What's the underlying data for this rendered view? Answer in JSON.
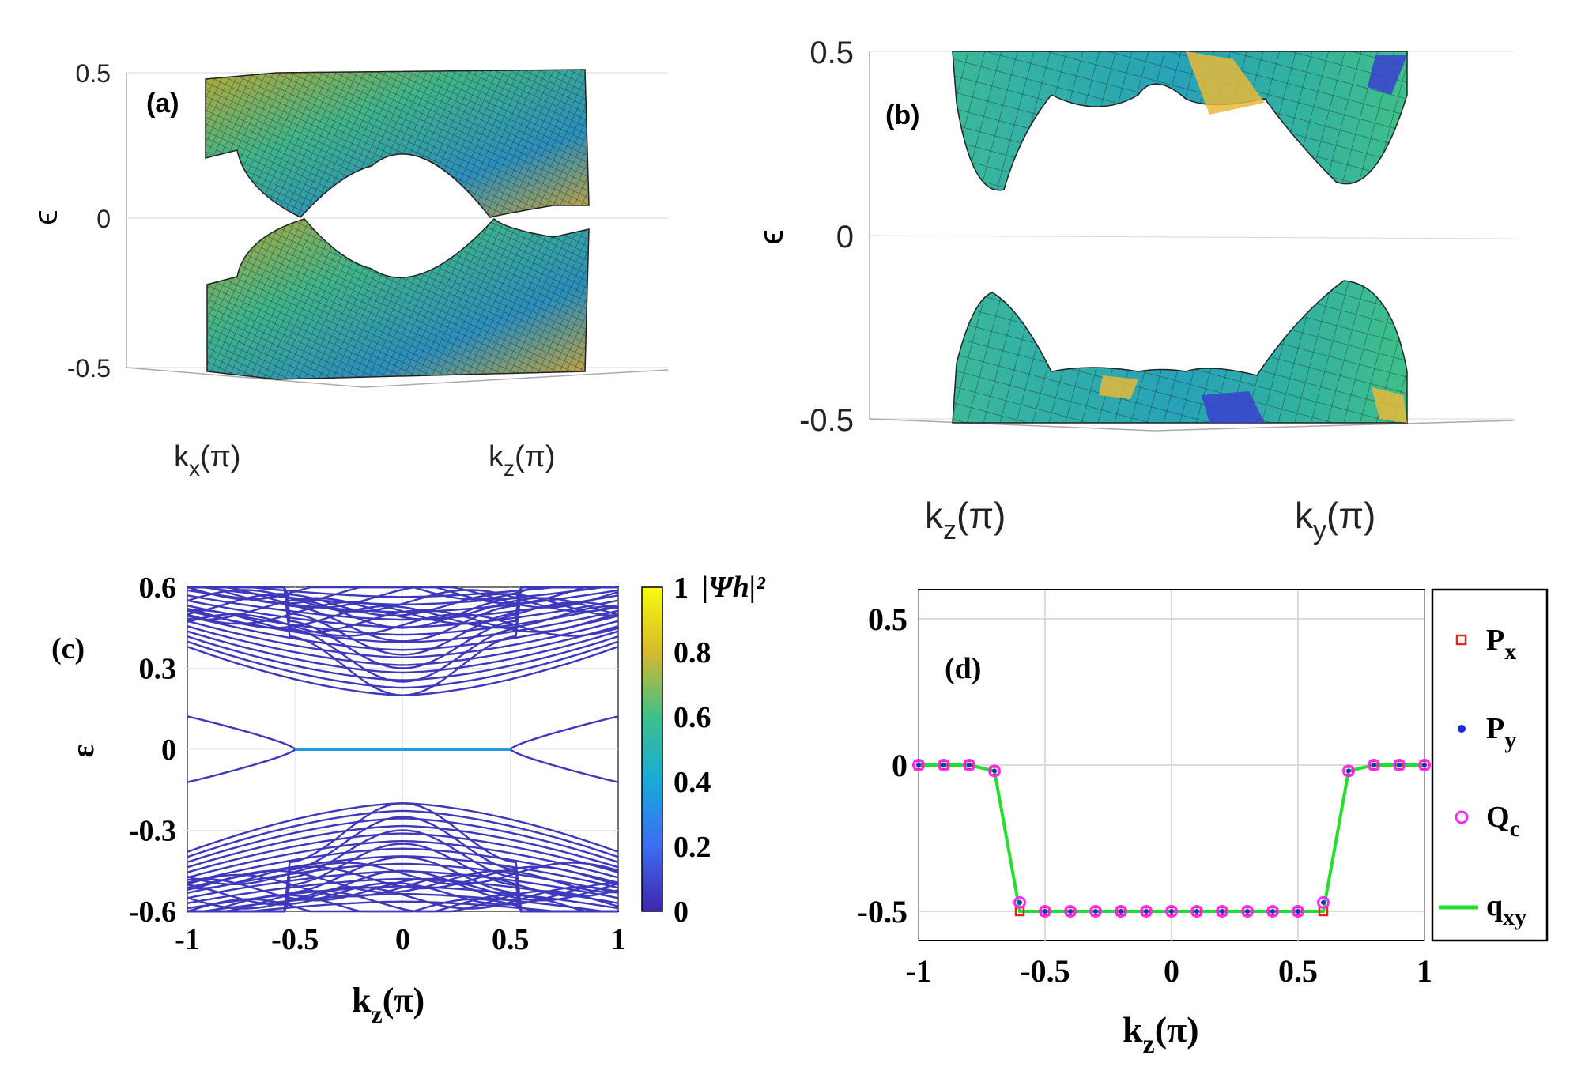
{
  "chart_data": [
    {
      "panel": "(a)",
      "type": "surface3d",
      "title": "",
      "zlabel": "ϵ",
      "xlabel_axis": "x",
      "ylabel_axis": "z",
      "xlabel_unit": "(π)",
      "ylabel_unit": "(π)",
      "zlim": [
        -0.5,
        0.5
      ],
      "zticks": [
        "0.5",
        "0",
        "-0.5"
      ],
      "zvalues": [
        0.5,
        0,
        -0.5
      ],
      "band_gap_min": 0.0,
      "band_max": 0.5
    },
    {
      "panel": "(b)",
      "type": "surface3d",
      "title": "",
      "zlabel": "ϵ",
      "xlabel_axis": "z",
      "ylabel_axis": "y",
      "xlabel_unit": "(π)",
      "ylabel_unit": "(π)",
      "zlim": [
        -0.5,
        0.5
      ],
      "zticks": [
        "0.5",
        "0",
        "-0.5"
      ],
      "zvalues": [
        0.5,
        0,
        -0.5
      ],
      "band_gap_min": 0.3
    },
    {
      "panel": "(c)",
      "type": "line",
      "title": "",
      "xlabel_axis": "z",
      "xlabel_unit": "(π)",
      "ylabel": "ε",
      "xlim": [
        -1,
        1
      ],
      "ylim": [
        -0.6,
        0.6
      ],
      "xticks": [
        "-1",
        "-0.5",
        "0",
        "0.5",
        "1"
      ],
      "xtick_values": [
        -1,
        -0.5,
        0,
        0.5,
        1
      ],
      "yticks": [
        "0.6",
        "0.3",
        "0",
        "-0.3",
        "-0.6"
      ],
      "ytick_values": [
        0.6,
        0.3,
        0,
        -0.3,
        -0.6
      ],
      "colorbar": {
        "label": "|Ψh|²",
        "ticks": [
          "1",
          "0.8",
          "0.6",
          "0.4",
          "0.2",
          "0"
        ],
        "tick_values": [
          1,
          0.8,
          0.6,
          0.4,
          0.2,
          0
        ],
        "range": [
          0,
          1
        ]
      },
      "bulk_band_edge": 0.2,
      "gapped_band_edges": [
        0.2,
        0.26,
        0.33,
        0.4
      ],
      "flat_band_weight": 0.35,
      "bulk_weight": 0.05,
      "flat_band_extent": [
        -0.5,
        0.5
      ]
    },
    {
      "panel": "(d)",
      "type": "scatter",
      "title": "",
      "xlabel_axis": "z",
      "xlabel_unit": "(π)",
      "ylabel": "",
      "xlim": [
        -1,
        1
      ],
      "ylim": [
        -0.6,
        0.6
      ],
      "xticks": [
        "-1",
        "-0.5",
        "0",
        "0.5",
        "1"
      ],
      "xtick_values": [
        -1,
        -0.5,
        0,
        0.5,
        1
      ],
      "yticks": [
        "0.5",
        "0",
        "-0.5"
      ],
      "ytick_values": [
        0.5,
        0,
        -0.5
      ],
      "grid": true,
      "legend": {
        "position": "right-outside",
        "entries": [
          {
            "symbol": "P",
            "sub": "x",
            "color": "#e8231d",
            "marker": "square"
          },
          {
            "symbol": "P",
            "sub": "y",
            "color": "#1a2be0",
            "marker": "dot"
          },
          {
            "symbol": "Q",
            "sub": "c",
            "color": "#ff2aff",
            "marker": "circle"
          },
          {
            "symbol": "q",
            "sub": "xy",
            "color": "#22e02a",
            "marker": "line"
          }
        ]
      },
      "x": [
        -1.0,
        -0.9,
        -0.8,
        -0.7,
        -0.6,
        -0.5,
        -0.4,
        -0.3,
        -0.2,
        -0.1,
        0.0,
        0.1,
        0.2,
        0.3,
        0.4,
        0.5,
        0.6,
        0.7,
        0.8,
        0.9,
        1.0
      ],
      "series": [
        {
          "name": "Px",
          "values": [
            0,
            0,
            0,
            -0.02,
            -0.5,
            -0.5,
            -0.5,
            -0.5,
            -0.5,
            -0.5,
            -0.5,
            -0.5,
            -0.5,
            -0.5,
            -0.5,
            -0.5,
            -0.5,
            -0.02,
            0,
            0,
            0
          ]
        },
        {
          "name": "Qc",
          "values": [
            0,
            0,
            0,
            -0.02,
            -0.47,
            -0.5,
            -0.5,
            -0.5,
            -0.5,
            -0.5,
            -0.5,
            -0.5,
            -0.5,
            -0.5,
            -0.5,
            -0.5,
            -0.47,
            -0.02,
            0,
            0,
            0
          ]
        },
        {
          "name": "qxy",
          "values": [
            0,
            0,
            0,
            -0.02,
            -0.5,
            -0.5,
            -0.5,
            -0.5,
            -0.5,
            -0.5,
            -0.5,
            -0.5,
            -0.5,
            -0.5,
            -0.5,
            -0.5,
            -0.5,
            -0.02,
            0,
            0,
            0
          ]
        }
      ]
    }
  ]
}
